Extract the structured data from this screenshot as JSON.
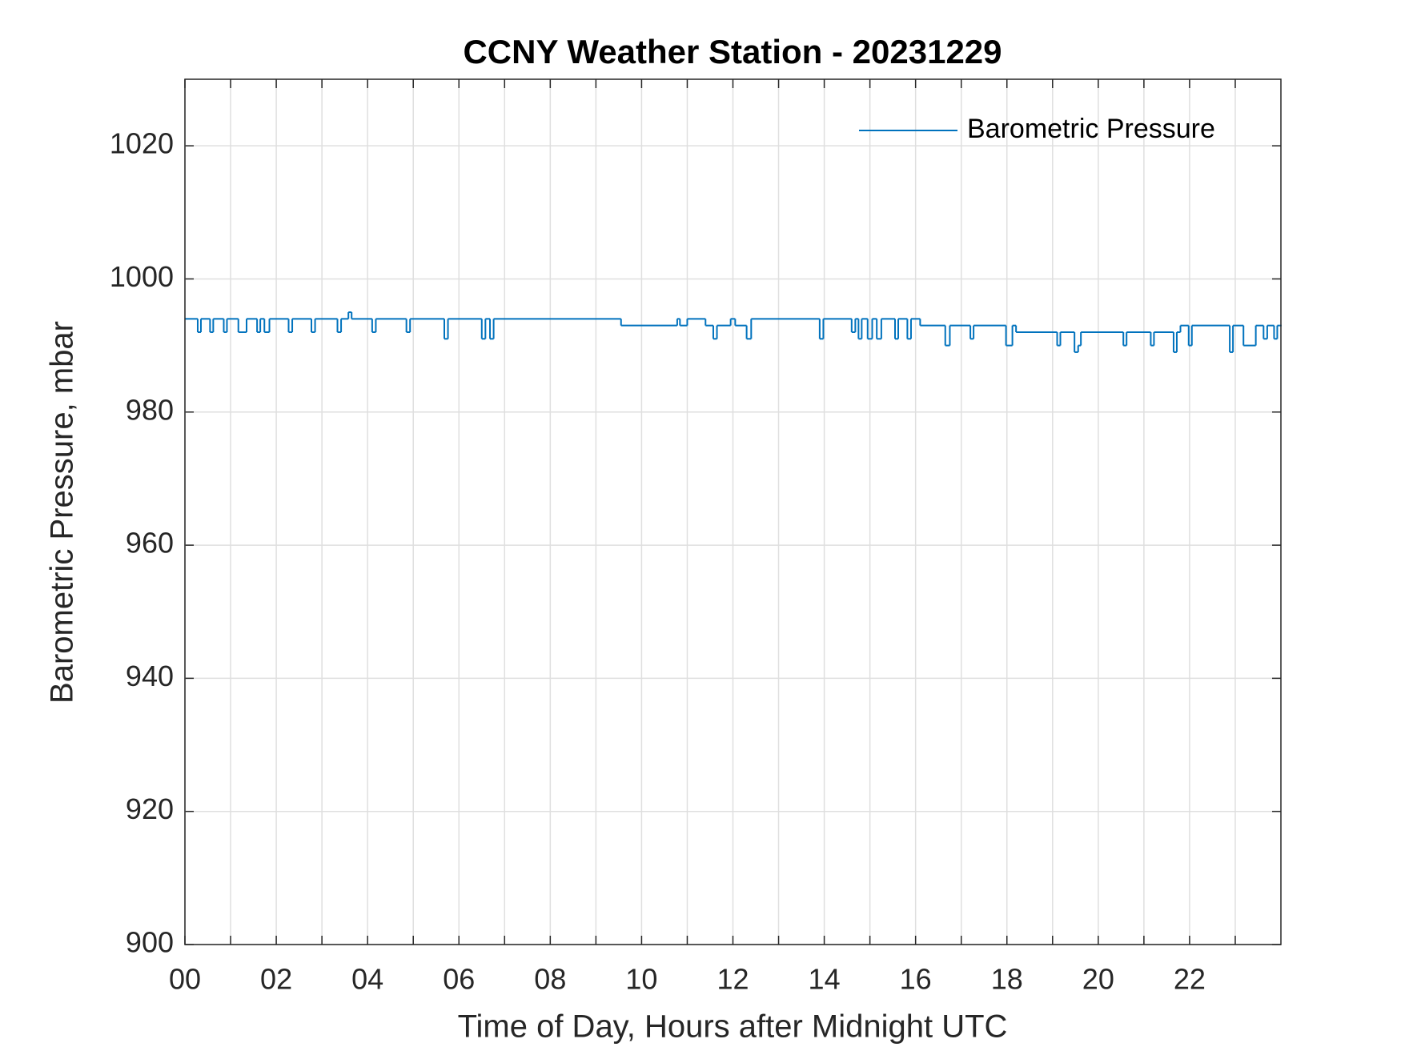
{
  "chart_data": {
    "type": "line",
    "drawstyle": "steps-post",
    "title": "CCNY Weather Station - 20231229",
    "xlabel": "Time of Day, Hours after Midnight UTC",
    "ylabel": "Barometric Pressure, mbar",
    "legend": "northeast",
    "grid": true,
    "xlim": [
      0,
      24
    ],
    "xticks": [
      {
        "value": 0,
        "label": "00"
      },
      {
        "value": 2,
        "label": "02"
      },
      {
        "value": 4,
        "label": "04"
      },
      {
        "value": 6,
        "label": "06"
      },
      {
        "value": 8,
        "label": "08"
      },
      {
        "value": 10,
        "label": "10"
      },
      {
        "value": 12,
        "label": "12"
      },
      {
        "value": 14,
        "label": "14"
      },
      {
        "value": 16,
        "label": "16"
      },
      {
        "value": 18,
        "label": "18"
      },
      {
        "value": 20,
        "label": "20"
      },
      {
        "value": 22,
        "label": "22"
      }
    ],
    "xminorticks": [
      1,
      3,
      5,
      7,
      9,
      11,
      13,
      15,
      17,
      19,
      21,
      23
    ],
    "ylim": [
      900,
      1030
    ],
    "yticks": [
      900,
      920,
      940,
      960,
      980,
      1000,
      1020
    ],
    "x": [
      0,
      0.28,
      0.35,
      0.55,
      0.62,
      0.85,
      0.92,
      1.17,
      1.35,
      1.58,
      1.65,
      1.74,
      1.85,
      2.27,
      2.35,
      2.77,
      2.85,
      3.34,
      3.42,
      3.58,
      3.65,
      4.1,
      4.18,
      4.85,
      4.93,
      5.68,
      5.76,
      6.5,
      6.58,
      6.68,
      6.76,
      9.55,
      10.78,
      10.84,
      11.0,
      11.4,
      11.57,
      11.65,
      11.95,
      12.05,
      12.3,
      12.4,
      13.9,
      13.98,
      14.6,
      14.68,
      14.75,
      14.82,
      14.95,
      15.05,
      15.15,
      15.25,
      15.55,
      15.62,
      15.82,
      15.9,
      16.1,
      16.65,
      16.75,
      17.2,
      17.27,
      17.98,
      18.12,
      18.2,
      19.1,
      19.17,
      19.48,
      19.56,
      19.62,
      20.55,
      20.62,
      21.15,
      21.22,
      21.65,
      21.72,
      21.8,
      21.98,
      22.05,
      22.88,
      22.95,
      23.18,
      23.45,
      23.62,
      23.7,
      23.85,
      23.92,
      23.98
    ],
    "series": [
      {
        "name": "Barometric Pressure",
        "color": "#0072bd",
        "values": [
          994,
          992,
          994,
          992,
          994,
          992,
          994,
          992,
          994,
          992,
          994,
          992,
          994,
          992,
          994,
          992,
          994,
          992,
          994,
          995,
          994,
          992,
          994,
          992,
          994,
          991,
          994,
          991,
          994,
          991,
          994,
          993,
          994,
          993,
          994,
          993,
          991,
          993,
          994,
          993,
          991,
          994,
          991,
          994,
          992,
          994,
          991,
          994,
          991,
          994,
          991,
          994,
          991,
          994,
          991,
          994,
          993,
          990,
          993,
          991,
          993,
          990,
          993,
          992,
          990,
          992,
          989,
          990,
          992,
          990,
          992,
          990,
          992,
          989,
          992,
          993,
          990,
          993,
          989,
          993,
          990,
          993,
          991,
          993,
          991,
          993,
          993
        ]
      }
    ]
  }
}
